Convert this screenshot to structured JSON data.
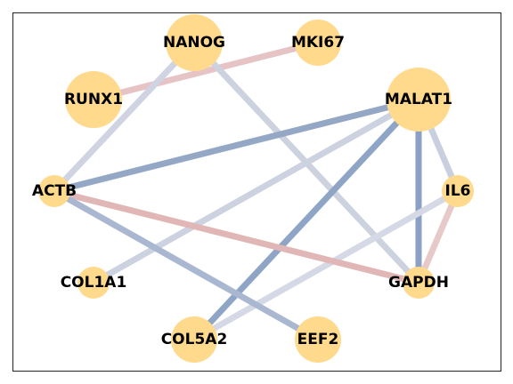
{
  "chart_data": {
    "type": "network",
    "nodes": [
      {
        "id": "NANOG",
        "label": "NANOG",
        "size": "large"
      },
      {
        "id": "MKI67",
        "label": "MKI67",
        "size": "medium"
      },
      {
        "id": "RUNX1",
        "label": "RUNX1",
        "size": "large"
      },
      {
        "id": "MALAT1",
        "label": "MALAT1",
        "size": "xlarge"
      },
      {
        "id": "ACTB",
        "label": "ACTB",
        "size": "small"
      },
      {
        "id": "IL6",
        "label": "IL6",
        "size": "small"
      },
      {
        "id": "COL1A1",
        "label": "COL1A1",
        "size": "small"
      },
      {
        "id": "GAPDH",
        "label": "GAPDH",
        "size": "small"
      },
      {
        "id": "COL5A2",
        "label": "COL5A2",
        "size": "medium"
      },
      {
        "id": "EEF2",
        "label": "EEF2",
        "size": "medium"
      }
    ],
    "edges": [
      {
        "source": "RUNX1",
        "target": "MKI67",
        "color": "#e6c4c6"
      },
      {
        "source": "NANOG",
        "target": "ACTB",
        "color": "#d0d4e2"
      },
      {
        "source": "NANOG",
        "target": "GAPDH",
        "color": "#cdd2df"
      },
      {
        "source": "MALAT1",
        "target": "ACTB",
        "color": "#94a8c6"
      },
      {
        "source": "MALAT1",
        "target": "COL1A1",
        "color": "#cdd2e0"
      },
      {
        "source": "MALAT1",
        "target": "COL5A2",
        "color": "#8fa5c5"
      },
      {
        "source": "MALAT1",
        "target": "GAPDH",
        "color": "#8aa1c3"
      },
      {
        "source": "MALAT1",
        "target": "IL6",
        "color": "#c9cfdf"
      },
      {
        "source": "IL6",
        "target": "GAPDH",
        "color": "#e7c9c9"
      },
      {
        "source": "IL6",
        "target": "COL5A2",
        "color": "#d5d9e5"
      },
      {
        "source": "ACTB",
        "target": "GAPDH",
        "color": "#e1b6b6"
      },
      {
        "source": "ACTB",
        "target": "EEF2",
        "color": "#a9b8d0"
      }
    ],
    "node_color": "#ffd98c",
    "frame": true
  }
}
